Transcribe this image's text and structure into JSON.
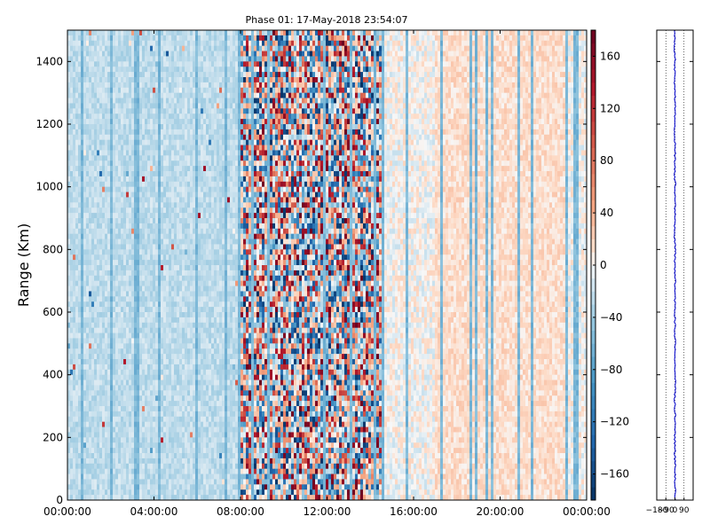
{
  "chart_data": [
    {
      "type": "heatmap",
      "title": "Phase 01: 17-May-2018 23:54:07",
      "xlabel": "",
      "ylabel": "Range (Km)",
      "x_range": [
        "00:00:00",
        "24:00:00"
      ],
      "x_ticks": [
        "00:00:00",
        "04:00:00",
        "08:00:00",
        "12:00:00",
        "16:00:00",
        "20:00:00",
        "00:00:00"
      ],
      "x_tick_hours": [
        0,
        4,
        8,
        12,
        16,
        20,
        24
      ],
      "ylim": [
        0,
        1500
      ],
      "y_ticks": [
        0,
        200,
        400,
        600,
        800,
        1000,
        1200,
        1400
      ],
      "colorbar": {
        "range": [
          -180,
          180
        ],
        "ticks": [
          -160,
          -120,
          -80,
          -40,
          0,
          40,
          80,
          120,
          160
        ],
        "colormap": "RdBu_r",
        "low_color": "#053061",
        "mid_color": "#f7f7f7",
        "high_color": "#67001f"
      },
      "description_of_pattern": {
        "noisy_high_amplitude_hours": [
          8,
          14.5
        ],
        "warm_bias_hours": [
          17,
          23
        ],
        "cool_bias_hours": [
          0,
          8
        ]
      }
    },
    {
      "type": "line",
      "title": "",
      "xlabel": "",
      "ylabel": "",
      "xlim": [
        -180,
        180
      ],
      "x_ticks": [
        -180,
        -90,
        0,
        90
      ],
      "x_tick_labels": [
        "−180",
        "−90",
        "0",
        "90"
      ],
      "ylim": [
        0,
        1500
      ],
      "series_color": "#0000cc",
      "mean_value": 0,
      "approx_spread": 8
    }
  ]
}
